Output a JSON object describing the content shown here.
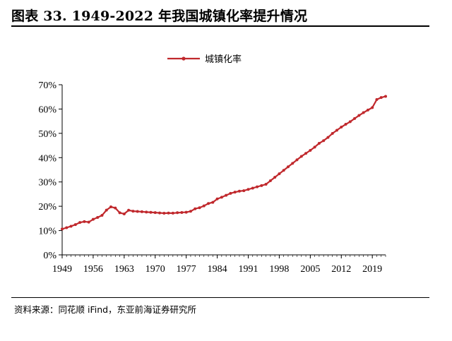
{
  "header": {
    "title": "图表 33. 1949-2022 年我国城镇化率提升情况"
  },
  "footer": {
    "source": "资料来源：同花顺 iFind，东亚前海证券研究所"
  },
  "colors": {
    "series": "#c0282c",
    "axis": "#000000"
  },
  "chart_data": {
    "type": "line",
    "title": "",
    "xlabel": "",
    "ylabel": "",
    "ylim": [
      0,
      70
    ],
    "xlim": [
      1949,
      2022
    ],
    "grid": false,
    "legend_position": "top-center",
    "yticks": [
      0,
      10,
      20,
      30,
      40,
      50,
      60,
      70
    ],
    "ytick_labels": [
      "0%",
      "10%",
      "20%",
      "30%",
      "40%",
      "50%",
      "60%",
      "70%"
    ],
    "xticks": [
      1949,
      1956,
      1963,
      1970,
      1977,
      1984,
      1991,
      1998,
      2005,
      2012,
      2019
    ],
    "xtick_labels": [
      "1949",
      "1956",
      "1963",
      "1970",
      "1977",
      "1984",
      "1991",
      "1998",
      "2005",
      "2012",
      "2019"
    ],
    "x": [
      1949,
      1950,
      1951,
      1952,
      1953,
      1954,
      1955,
      1956,
      1957,
      1958,
      1959,
      1960,
      1961,
      1962,
      1963,
      1964,
      1965,
      1966,
      1967,
      1968,
      1969,
      1970,
      1971,
      1972,
      1973,
      1974,
      1975,
      1976,
      1977,
      1978,
      1979,
      1980,
      1981,
      1982,
      1983,
      1984,
      1985,
      1986,
      1987,
      1988,
      1989,
      1990,
      1991,
      1992,
      1993,
      1994,
      1995,
      1996,
      1997,
      1998,
      1999,
      2000,
      2001,
      2002,
      2003,
      2004,
      2005,
      2006,
      2007,
      2008,
      2009,
      2010,
      2011,
      2012,
      2013,
      2014,
      2015,
      2016,
      2017,
      2018,
      2019,
      2020,
      2021,
      2022
    ],
    "series": [
      {
        "name": "城镇化率",
        "values": [
          10.64,
          11.18,
          11.78,
          12.46,
          13.31,
          13.69,
          13.48,
          14.62,
          15.39,
          16.25,
          18.41,
          19.75,
          19.29,
          17.33,
          16.84,
          18.37,
          17.98,
          17.86,
          17.74,
          17.62,
          17.5,
          17.38,
          17.26,
          17.13,
          17.2,
          17.16,
          17.34,
          17.44,
          17.55,
          17.92,
          18.96,
          19.39,
          20.16,
          21.13,
          21.62,
          23.01,
          23.71,
          24.52,
          25.32,
          25.81,
          26.21,
          26.41,
          26.94,
          27.46,
          27.99,
          28.51,
          29.04,
          30.48,
          31.91,
          33.35,
          34.78,
          36.22,
          37.66,
          39.09,
          40.53,
          41.76,
          42.99,
          44.34,
          45.89,
          46.99,
          48.34,
          49.95,
          51.27,
          52.57,
          53.73,
          54.77,
          56.1,
          57.35,
          58.52,
          59.58,
          60.6,
          63.89,
          64.72,
          65.22
        ]
      }
    ]
  }
}
